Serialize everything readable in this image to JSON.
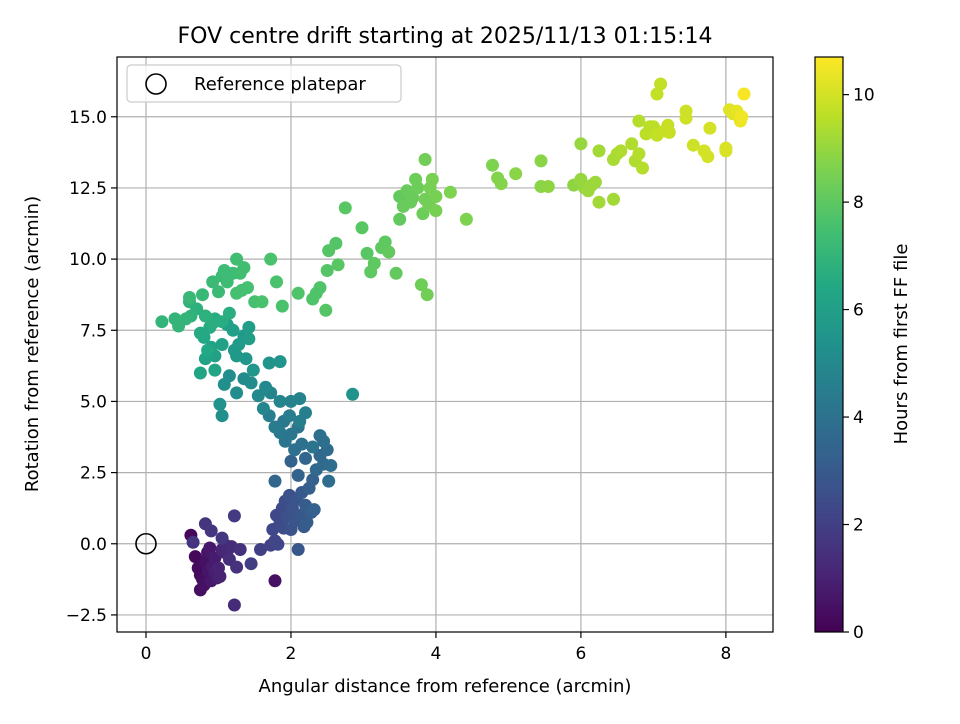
{
  "chart_data": {
    "type": "scatter",
    "title": "FOV centre drift starting at 2025/11/13 01:15:14",
    "xlabel": "Angular distance from reference (arcmin)",
    "ylabel": "Rotation from reference (arcmin)",
    "xlim": [
      -0.4,
      8.65
    ],
    "ylim": [
      -3.1,
      17.1
    ],
    "xticks": [
      0,
      2,
      4,
      6,
      8
    ],
    "xtick_labels": [
      "0",
      "2",
      "4",
      "6",
      "8"
    ],
    "yticks": [
      -2.5,
      0.0,
      2.5,
      5.0,
      7.5,
      10.0,
      12.5,
      15.0
    ],
    "ytick_labels": [
      "−2.5",
      "0.0",
      "2.5",
      "5.0",
      "7.5",
      "10.0",
      "12.5",
      "15.0"
    ],
    "grid": true,
    "legend": {
      "placement": "top-left",
      "entries": [
        {
          "label": "Reference platepar",
          "marker": "open-circle"
        }
      ]
    },
    "reference": {
      "x": 0.0,
      "y": 0.0
    },
    "colorbar": {
      "label": "Hours from first FF file",
      "range": [
        0,
        10.7
      ],
      "ticks": [
        0,
        2,
        4,
        6,
        8,
        10
      ],
      "tick_labels": [
        "0",
        "2",
        "4",
        "6",
        "8",
        "10"
      ],
      "colormap": "viridis"
    },
    "points": [
      [
        0.62,
        0.3,
        0.2
      ],
      [
        0.68,
        -0.45,
        0.2
      ],
      [
        0.72,
        -0.85,
        0.3
      ],
      [
        0.75,
        -1.1,
        0.3
      ],
      [
        0.75,
        -1.62,
        0.4
      ],
      [
        0.78,
        -1.25,
        0.4
      ],
      [
        0.8,
        -1.45,
        0.5
      ],
      [
        0.82,
        -0.6,
        0.5
      ],
      [
        0.85,
        -0.3,
        0.6
      ],
      [
        0.86,
        -0.95,
        0.6
      ],
      [
        0.88,
        -0.15,
        0.7
      ],
      [
        0.9,
        -1.3,
        0.7
      ],
      [
        0.92,
        -0.8,
        0.8
      ],
      [
        0.95,
        -0.5,
        0.8
      ],
      [
        0.95,
        -1.0,
        0.9
      ],
      [
        0.98,
        -1.2,
        0.9
      ],
      [
        1.0,
        -0.85,
        1.0
      ],
      [
        1.02,
        -1.15,
        1.0
      ],
      [
        1.05,
        -0.2,
        1.1
      ],
      [
        1.08,
        -0.3,
        1.1
      ],
      [
        1.1,
        -0.05,
        1.2
      ],
      [
        1.12,
        -0.25,
        1.2
      ],
      [
        1.18,
        -0.1,
        1.3
      ],
      [
        1.22,
        -2.15,
        1.3
      ],
      [
        1.15,
        -0.55,
        1.4
      ],
      [
        1.3,
        -0.2,
        1.5
      ],
      [
        1.25,
        -0.82,
        1.5
      ],
      [
        1.78,
        -1.3,
        0.5
      ],
      [
        0.65,
        0.05,
        1.6
      ],
      [
        0.82,
        0.7,
        1.6
      ],
      [
        0.9,
        0.45,
        1.7
      ],
      [
        1.05,
        0.2,
        1.7
      ],
      [
        1.22,
        0.98,
        1.8
      ],
      [
        1.45,
        -0.7,
        1.9
      ],
      [
        1.58,
        -0.2,
        2.0
      ],
      [
        1.72,
        -0.05,
        2.1
      ],
      [
        1.78,
        0.1,
        2.2
      ],
      [
        1.82,
        -0.02,
        2.2
      ],
      [
        1.75,
        0.5,
        2.3
      ],
      [
        1.8,
        1.0,
        2.3
      ],
      [
        1.85,
        0.75,
        2.4
      ],
      [
        1.88,
        1.25,
        2.4
      ],
      [
        1.9,
        0.55,
        2.5
      ],
      [
        1.92,
        1.5,
        2.5
      ],
      [
        1.95,
        0.95,
        2.6
      ],
      [
        1.98,
        1.7,
        2.6
      ],
      [
        2.0,
        0.5,
        2.7
      ],
      [
        2.02,
        1.25,
        2.7
      ],
      [
        2.05,
        0.8,
        2.8
      ],
      [
        2.08,
        1.55,
        2.8
      ],
      [
        2.1,
        -0.2,
        2.9
      ],
      [
        2.12,
        1.0,
        2.9
      ],
      [
        2.15,
        1.8,
        3.0
      ],
      [
        2.18,
        0.6,
        3.0
      ],
      [
        2.2,
        1.35,
        3.1
      ],
      [
        2.22,
        0.75,
        3.1
      ],
      [
        2.25,
        1.95,
        3.2
      ],
      [
        2.28,
        1.1,
        3.2
      ],
      [
        2.3,
        2.25,
        3.3
      ],
      [
        2.32,
        1.2,
        3.3
      ],
      [
        2.1,
        2.4,
        3.4
      ],
      [
        2.0,
        2.9,
        3.4
      ],
      [
        1.78,
        2.2,
        3.5
      ],
      [
        2.2,
        3.0,
        3.5
      ],
      [
        2.35,
        2.6,
        3.6
      ],
      [
        2.4,
        3.1,
        3.6
      ],
      [
        2.45,
        2.8,
        3.7
      ],
      [
        2.5,
        3.3,
        3.7
      ],
      [
        2.52,
        2.2,
        3.8
      ],
      [
        2.55,
        2.75,
        3.8
      ],
      [
        2.4,
        3.8,
        3.9
      ],
      [
        2.45,
        3.6,
        3.9
      ],
      [
        2.05,
        3.3,
        4.0
      ],
      [
        2.15,
        3.5,
        4.0
      ],
      [
        2.3,
        3.4,
        4.1
      ],
      [
        2.1,
        4.1,
        4.1
      ],
      [
        2.0,
        3.85,
        4.2
      ],
      [
        1.92,
        3.6,
        4.2
      ],
      [
        1.9,
        4.3,
        4.3
      ],
      [
        1.85,
        3.9,
        4.3
      ],
      [
        1.78,
        4.1,
        4.4
      ],
      [
        1.7,
        4.5,
        4.5
      ],
      [
        1.98,
        4.5,
        4.5
      ],
      [
        2.12,
        4.3,
        4.6
      ],
      [
        2.2,
        4.6,
        4.6
      ],
      [
        2.0,
        5.0,
        4.7
      ],
      [
        2.12,
        5.1,
        4.7
      ],
      [
        1.72,
        5.3,
        4.8
      ],
      [
        1.85,
        5.0,
        4.8
      ],
      [
        1.62,
        4.75,
        4.9
      ],
      [
        1.55,
        5.2,
        5.0
      ],
      [
        1.65,
        5.5,
        5.0
      ],
      [
        1.45,
        5.65,
        5.1
      ],
      [
        1.35,
        5.8,
        5.1
      ],
      [
        1.25,
        5.3,
        5.2
      ],
      [
        1.15,
        5.9,
        5.2
      ],
      [
        1.08,
        5.6,
        5.3
      ],
      [
        1.05,
        4.5,
        5.3
      ],
      [
        1.02,
        4.9,
        5.4
      ],
      [
        2.85,
        5.25,
        5.4
      ],
      [
        1.7,
        6.35,
        5.5
      ],
      [
        1.85,
        6.4,
        5.5
      ],
      [
        1.48,
        6.1,
        5.6
      ],
      [
        1.38,
        6.5,
        5.6
      ],
      [
        1.25,
        6.6,
        5.7
      ],
      [
        1.22,
        6.8,
        5.7
      ],
      [
        1.28,
        7.0,
        5.8
      ],
      [
        1.35,
        7.3,
        5.8
      ],
      [
        1.42,
        7.6,
        5.9
      ],
      [
        1.42,
        7.2,
        5.9
      ],
      [
        1.2,
        7.5,
        6.0
      ],
      [
        1.12,
        7.7,
        6.0
      ],
      [
        1.05,
        7.0,
        6.1
      ],
      [
        0.95,
        6.6,
        6.1
      ],
      [
        0.9,
        6.9,
        6.2
      ],
      [
        0.82,
        6.5,
        6.2
      ],
      [
        0.95,
        6.1,
        6.3
      ],
      [
        0.75,
        6.0,
        6.3
      ],
      [
        0.85,
        6.8,
        6.4
      ],
      [
        0.8,
        7.25,
        6.4
      ],
      [
        0.75,
        7.4,
        6.5
      ],
      [
        0.88,
        7.6,
        6.5
      ],
      [
        0.95,
        7.9,
        6.6
      ],
      [
        1.05,
        7.8,
        6.6
      ],
      [
        1.15,
        8.1,
        6.7
      ],
      [
        0.92,
        7.75,
        6.7
      ],
      [
        0.82,
        8.0,
        6.8
      ],
      [
        0.7,
        8.25,
        6.8
      ],
      [
        0.6,
        8.5,
        6.9
      ],
      [
        0.62,
        8.0,
        6.9
      ],
      [
        0.55,
        7.9,
        7.0
      ],
      [
        0.45,
        7.65,
        7.0
      ],
      [
        0.4,
        7.9,
        7.0
      ],
      [
        0.22,
        7.8,
        7.0
      ],
      [
        0.6,
        8.65,
        7.1
      ],
      [
        0.78,
        8.75,
        7.1
      ],
      [
        0.92,
        9.2,
        7.2
      ],
      [
        1.0,
        8.85,
        7.2
      ],
      [
        1.05,
        9.4,
        7.2
      ],
      [
        1.08,
        9.6,
        7.3
      ],
      [
        1.12,
        9.2,
        7.3
      ],
      [
        1.2,
        9.5,
        7.3
      ],
      [
        1.25,
        10.0,
        7.4
      ],
      [
        1.3,
        9.5,
        7.4
      ],
      [
        1.35,
        9.7,
        7.4
      ],
      [
        1.25,
        8.8,
        7.5
      ],
      [
        1.32,
        8.9,
        7.5
      ],
      [
        1.4,
        9.0,
        7.5
      ],
      [
        1.5,
        8.5,
        7.5
      ],
      [
        1.6,
        8.5,
        7.6
      ],
      [
        1.72,
        10.0,
        7.6
      ],
      [
        1.8,
        9.2,
        7.6
      ],
      [
        1.88,
        8.35,
        7.6
      ],
      [
        2.1,
        8.8,
        7.7
      ],
      [
        2.3,
        8.6,
        7.7
      ],
      [
        2.35,
        8.8,
        7.7
      ],
      [
        2.4,
        9.0,
        7.7
      ],
      [
        2.48,
        8.2,
        7.8
      ],
      [
        2.5,
        9.6,
        7.8
      ],
      [
        2.52,
        10.3,
        7.8
      ],
      [
        2.62,
        10.55,
        7.8
      ],
      [
        2.65,
        9.8,
        7.9
      ],
      [
        2.75,
        11.8,
        7.9
      ],
      [
        2.98,
        11.1,
        7.9
      ],
      [
        3.05,
        10.2,
        7.9
      ],
      [
        3.1,
        9.55,
        8.0
      ],
      [
        3.15,
        9.85,
        8.0
      ],
      [
        3.25,
        10.4,
        8.0
      ],
      [
        3.3,
        10.6,
        8.0
      ],
      [
        3.35,
        10.25,
        8.1
      ],
      [
        3.45,
        9.5,
        8.1
      ],
      [
        3.5,
        11.4,
        8.1
      ],
      [
        3.5,
        12.2,
        8.1
      ],
      [
        3.55,
        11.85,
        8.2
      ],
      [
        3.6,
        12.4,
        8.2
      ],
      [
        3.65,
        12.0,
        8.2
      ],
      [
        3.68,
        12.15,
        8.2
      ],
      [
        3.72,
        12.8,
        8.3
      ],
      [
        3.75,
        12.5,
        8.3
      ],
      [
        3.8,
        9.1,
        8.3
      ],
      [
        3.82,
        11.6,
        8.3
      ],
      [
        3.85,
        12.1,
        8.4
      ],
      [
        3.85,
        13.5,
        8.4
      ],
      [
        3.88,
        8.75,
        8.4
      ],
      [
        3.9,
        11.9,
        8.4
      ],
      [
        3.92,
        12.5,
        8.5
      ],
      [
        3.95,
        12.8,
        8.5
      ],
      [
        4.0,
        11.7,
        8.5
      ],
      [
        4.0,
        12.2,
        8.5
      ],
      [
        4.2,
        12.35,
        8.6
      ],
      [
        4.42,
        11.4,
        8.6
      ],
      [
        4.78,
        13.3,
        8.6
      ],
      [
        4.85,
        12.85,
        8.7
      ],
      [
        4.9,
        12.65,
        8.7
      ],
      [
        5.1,
        13.0,
        8.8
      ],
      [
        5.45,
        13.45,
        8.8
      ],
      [
        5.45,
        12.55,
        8.8
      ],
      [
        5.55,
        12.55,
        8.9
      ],
      [
        5.9,
        12.6,
        8.9
      ],
      [
        6.0,
        12.8,
        9.0
      ],
      [
        6.0,
        14.05,
        9.0
      ],
      [
        6.05,
        12.5,
        9.0
      ],
      [
        6.1,
        12.4,
        9.1
      ],
      [
        6.15,
        12.6,
        9.1
      ],
      [
        6.2,
        12.7,
        9.1
      ],
      [
        6.25,
        13.8,
        9.2
      ],
      [
        6.25,
        12.0,
        9.2
      ],
      [
        6.45,
        12.1,
        9.2
      ],
      [
        6.45,
        13.5,
        9.3
      ],
      [
        6.5,
        13.7,
        9.3
      ],
      [
        6.55,
        13.8,
        9.4
      ],
      [
        6.7,
        14.05,
        9.4
      ],
      [
        6.75,
        13.45,
        9.4
      ],
      [
        6.8,
        13.7,
        9.5
      ],
      [
        6.8,
        14.85,
        9.5
      ],
      [
        6.85,
        13.2,
        9.5
      ],
      [
        6.9,
        14.4,
        9.6
      ],
      [
        6.95,
        14.65,
        9.6
      ],
      [
        7.0,
        14.65,
        9.6
      ],
      [
        7.05,
        14.35,
        9.7
      ],
      [
        7.05,
        15.8,
        9.7
      ],
      [
        7.1,
        16.15,
        9.7
      ],
      [
        7.15,
        14.5,
        9.8
      ],
      [
        7.2,
        14.7,
        9.8
      ],
      [
        7.22,
        14.45,
        9.8
      ],
      [
        7.45,
        15.2,
        9.9
      ],
      [
        7.45,
        14.95,
        9.9
      ],
      [
        7.55,
        14.0,
        9.9
      ],
      [
        7.7,
        13.8,
        10.0
      ],
      [
        7.75,
        13.6,
        10.0
      ],
      [
        7.78,
        14.6,
        10.0
      ],
      [
        8.0,
        13.9,
        10.1
      ],
      [
        8.0,
        13.8,
        10.1
      ],
      [
        8.05,
        15.25,
        10.2
      ],
      [
        8.1,
        15.1,
        10.2
      ],
      [
        8.15,
        15.2,
        10.3
      ],
      [
        8.2,
        14.85,
        10.4
      ],
      [
        8.22,
        15.0,
        10.5
      ],
      [
        8.25,
        15.8,
        10.6
      ]
    ]
  }
}
